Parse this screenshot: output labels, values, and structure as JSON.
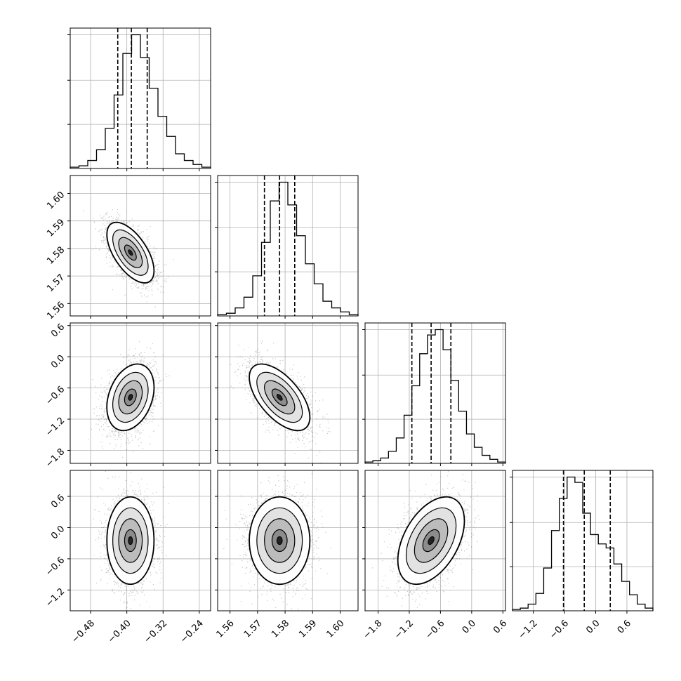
{
  "chart_data": {
    "type": "corner",
    "title": "",
    "grid": true,
    "parameters": [
      {
        "range": [
          -0.525,
          -0.215
        ],
        "ticks": [
          -0.48,
          -0.4,
          -0.32,
          -0.24
        ],
        "tick_labels": [
          "−0.48",
          "−0.40",
          "−0.32",
          "−0.24"
        ],
        "quantiles": [
          -0.42,
          -0.39,
          -0.355
        ],
        "histogram": {
          "bin_edges_range": [
            -0.525,
            -0.215
          ],
          "counts": [
            1,
            2,
            6,
            14,
            30,
            55,
            86,
            100,
            83,
            60,
            39,
            24,
            11,
            6,
            3,
            1
          ]
        }
      },
      {
        "range": [
          1.5555,
          1.6065
        ],
        "ticks": [
          1.56,
          1.57,
          1.58,
          1.59,
          1.6
        ],
        "tick_labels": [
          "1.56",
          "1.57",
          "1.58",
          "1.59",
          "1.60"
        ],
        "quantiles": [
          1.5725,
          1.578,
          1.5835
        ],
        "histogram": {
          "bin_edges_range": [
            1.5555,
            1.6065
          ],
          "counts": [
            1,
            2,
            6,
            14,
            30,
            55,
            86,
            100,
            83,
            60,
            39,
            24,
            11,
            6,
            3,
            1
          ]
        }
      },
      {
        "range": [
          -2.05,
          0.65
        ],
        "ticks": [
          -1.8,
          -1.2,
          -0.6,
          0.0,
          0.6
        ],
        "tick_labels": [
          "−1.8",
          "−1.2",
          "−0.6",
          "0.0",
          "0.6"
        ],
        "quantiles": [
          -1.15,
          -0.78,
          -0.4
        ],
        "histogram": {
          "bin_edges_range": [
            -2.05,
            0.65
          ],
          "counts": [
            1,
            2,
            4,
            9,
            19,
            36,
            58,
            82,
            96,
            100,
            85,
            62,
            39,
            22,
            12,
            6,
            3,
            1
          ]
        }
      },
      {
        "range": [
          -1.6,
          1.1
        ],
        "ticks": [
          -1.2,
          -0.6,
          0.0,
          0.6
        ],
        "tick_labels": [
          "−1.2",
          "−0.6",
          "0.0",
          "0.6"
        ],
        "quantiles": [
          -0.62,
          -0.22,
          0.28
        ],
        "histogram": {
          "bin_edges_range": [
            -1.6,
            1.1
          ],
          "counts": [
            1,
            2,
            5,
            13,
            32,
            60,
            84,
            100,
            96,
            73,
            57,
            50,
            47,
            35,
            22,
            12,
            5,
            2
          ]
        }
      }
    ],
    "pairs": [
      {
        "x": 0,
        "y": 1,
        "mean": [
          -0.392,
          1.5785
        ],
        "sd": [
          0.026,
          0.0055
        ],
        "corr": -0.6
      },
      {
        "x": 0,
        "y": 2,
        "mean": [
          -0.392,
          -0.78
        ],
        "sd": [
          0.026,
          0.32
        ],
        "corr": 0.3
      },
      {
        "x": 1,
        "y": 2,
        "mean": [
          1.578,
          -0.78
        ],
        "sd": [
          0.0055,
          0.32
        ],
        "corr": -0.6
      },
      {
        "x": 0,
        "y": 3,
        "mean": [
          -0.392,
          -0.25
        ],
        "sd": [
          0.026,
          0.42
        ],
        "corr": 0.0
      },
      {
        "x": 1,
        "y": 3,
        "mean": [
          1.578,
          -0.25
        ],
        "sd": [
          0.0055,
          0.42
        ],
        "corr": 0.0
      },
      {
        "x": 2,
        "y": 3,
        "mean": [
          -0.78,
          -0.25
        ],
        "sd": [
          0.32,
          0.42
        ],
        "corr": 0.45
      }
    ]
  }
}
